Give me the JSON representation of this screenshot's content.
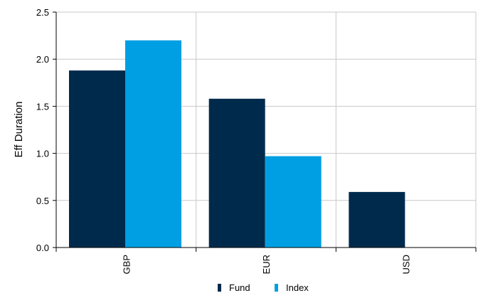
{
  "chart_data": {
    "type": "bar",
    "categories": [
      "GBP",
      "EUR",
      "USD"
    ],
    "series": [
      {
        "name": "Fund",
        "values": [
          1.88,
          1.58,
          0.59
        ],
        "color": "#002a4c"
      },
      {
        "name": "Index",
        "values": [
          2.2,
          0.97,
          null
        ],
        "color": "#009fe3"
      }
    ],
    "ylabel": "Eff Duration",
    "xlabel": "",
    "ylim": [
      0,
      2.5
    ],
    "yticks": [
      "0.0",
      "0.5",
      "1.0",
      "1.5",
      "2.0",
      "2.5"
    ],
    "grid": true,
    "legend_position": "bottom"
  }
}
